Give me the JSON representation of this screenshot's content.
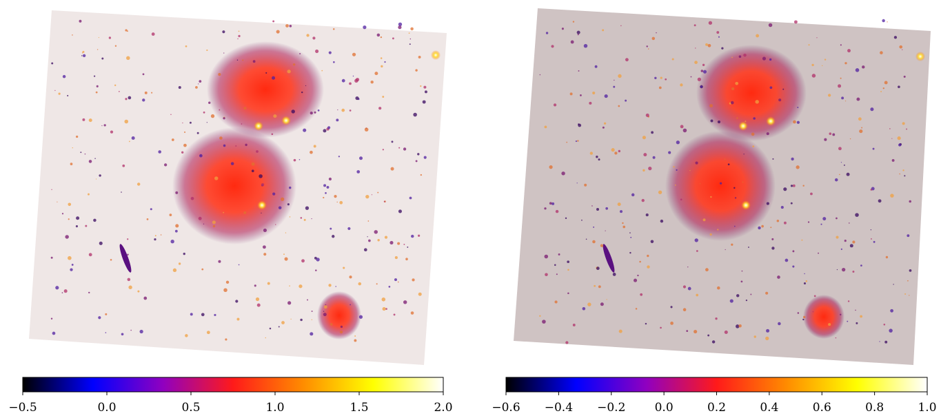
{
  "chart_data": [
    {
      "type": "image",
      "colormap": [
        "#000000",
        "#0000ff",
        "#9000c0",
        "#ff1a1a",
        "#ff8c00",
        "#ffff00",
        "#ffffff"
      ],
      "clim": [
        -0.5,
        2.0
      ],
      "cticks": [
        {
          "value": -0.5,
          "label": "−0.5"
        },
        {
          "value": 0,
          "label": "0.0"
        },
        0.5,
        {
          "value": 1,
          "label": "1.0"
        },
        1.5,
        {
          "value": 2,
          "label": "2.0"
        }
      ]
    },
    {
      "type": "image",
      "colormap": [
        "#000000",
        "#0000ff",
        "#9000c0",
        "#ff1a1a",
        "#ff8c00",
        "#ffff00",
        "#ffffff"
      ],
      "clim": [
        -0.6,
        1.0
      ],
      "cticks": [
        {
          "value": -0.6,
          "label": "−0.6"
        },
        {
          "value": -0.4,
          "label": "−0.4"
        },
        {
          "value": -0.2,
          "label": "−0.2"
        },
        {
          "value": 0,
          "label": "0.0"
        },
        0.2,
        0.4,
        0.6,
        0.8,
        {
          "value": 1,
          "label": "1.0"
        }
      ]
    }
  ]
}
